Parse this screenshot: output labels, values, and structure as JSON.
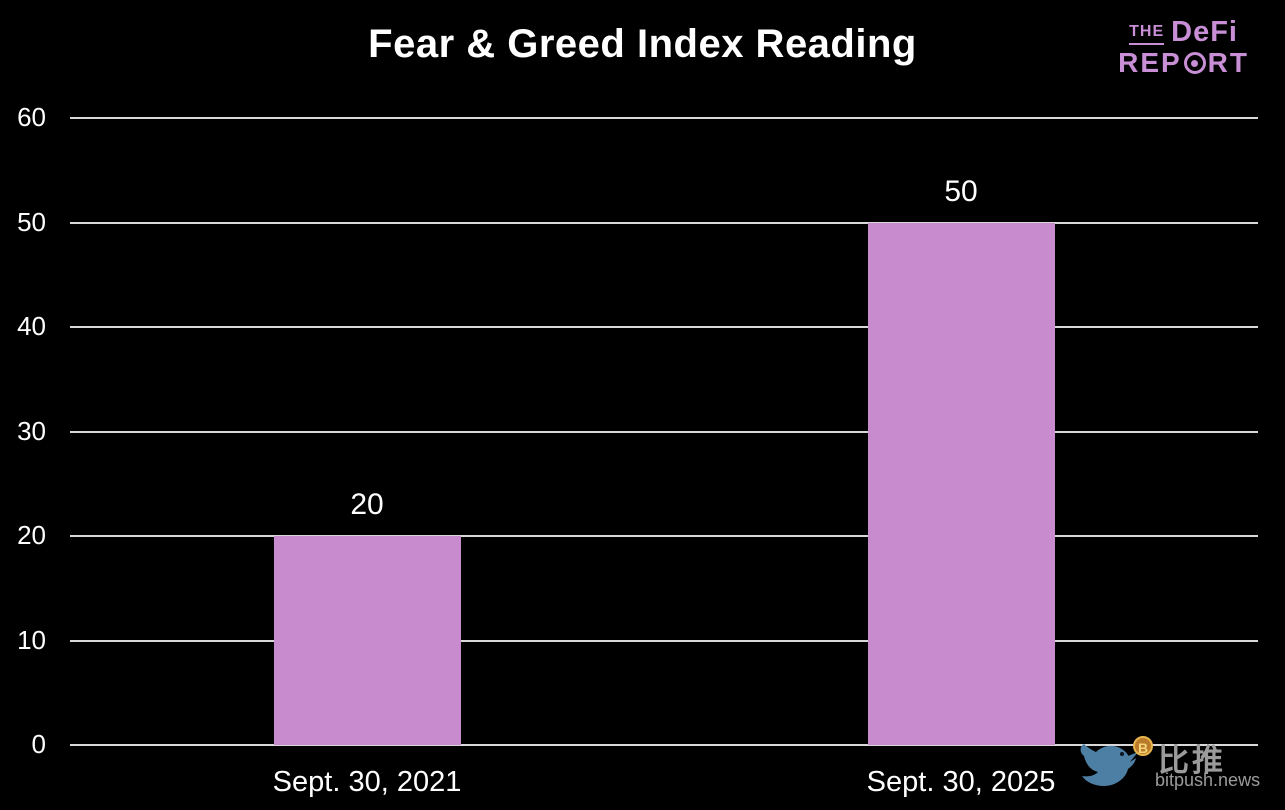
{
  "title": "Fear & Greed Index Reading",
  "logo": {
    "the": "THE",
    "defi": "DeFi",
    "report_pre": "REP",
    "report_post": "RT",
    "color": "#c98fd6"
  },
  "watermark": {
    "cn": "比推",
    "site": "bitpush.news",
    "coin_symbol": "B",
    "bird_color": "#4d7fa4",
    "text_color": "#9b9b9b"
  },
  "chart_data": {
    "type": "bar",
    "categories": [
      "Sept. 30, 2021",
      "Sept. 30, 2025"
    ],
    "values": [
      20,
      50
    ],
    "title": "Fear & Greed Index Reading",
    "xlabel": "",
    "ylabel": "",
    "ylim": [
      0,
      60
    ],
    "ytick_step": 10,
    "yticks": [
      0,
      10,
      20,
      30,
      40,
      50,
      60
    ],
    "grid": true,
    "legend": "none",
    "background": "#000000",
    "bar_color": "#c88bce",
    "gridline_color": "#d8d8d8",
    "text_color": "#ffffff"
  }
}
